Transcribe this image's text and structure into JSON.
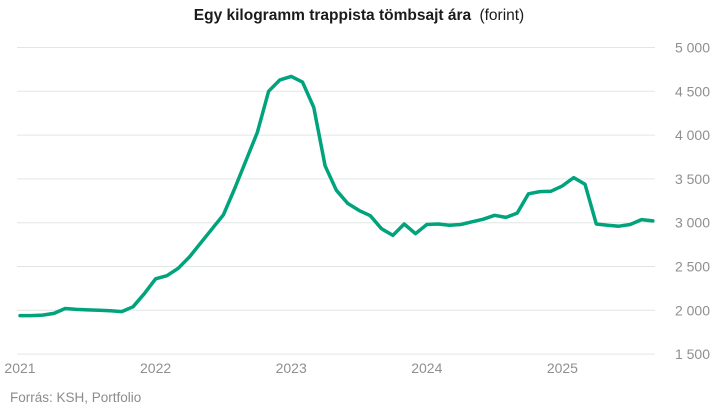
{
  "title": {
    "main": "Egy kilogramm trappista tömbsajt ára",
    "suffix": "(forint)"
  },
  "footer": {
    "source": "Forrás: KSH, Portfolio"
  },
  "colors": {
    "line": "#00a37c",
    "gridline": "#e1e6e3",
    "tick_text": "#8f8f8f",
    "title_text": "#1b1b1b",
    "background": "#ffffff"
  },
  "chart_data": {
    "type": "line",
    "title": "Egy kilogramm trappista tömbsajt ára (forint)",
    "unit": "forint",
    "frequency": "monthly",
    "x_start": "2021-01",
    "x_end": "2025-09",
    "grid": true,
    "legend": false,
    "y_axis_side": "right",
    "ylim": [
      1500,
      5000
    ],
    "yticks": [
      {
        "value": 5000,
        "label": "5 000"
      },
      {
        "value": 4500,
        "label": "4 500"
      },
      {
        "value": 4000,
        "label": "4 000"
      },
      {
        "value": 3500,
        "label": "3 500"
      },
      {
        "value": 3000,
        "label": "3 000"
      },
      {
        "value": 2500,
        "label": "2 500"
      },
      {
        "value": 2000,
        "label": "2 000"
      },
      {
        "value": 1500,
        "label": "1 500"
      }
    ],
    "xticks": [
      {
        "label": "2021",
        "month_index": 0
      },
      {
        "label": "2022",
        "month_index": 12
      },
      {
        "label": "2023",
        "month_index": 24
      },
      {
        "label": "2024",
        "month_index": 36
      },
      {
        "label": "2025",
        "month_index": 48
      }
    ],
    "series": [
      {
        "name": "Trappista tömbsajt ára (Ft/kg)",
        "color": "#00a37c",
        "values": [
          1940,
          1940,
          1945,
          1965,
          2020,
          2010,
          2005,
          2000,
          1995,
          1985,
          2040,
          2190,
          2360,
          2395,
          2480,
          2610,
          2770,
          2930,
          3090,
          3390,
          3710,
          4030,
          4500,
          4630,
          4670,
          4605,
          4315,
          3650,
          3370,
          3220,
          3140,
          3080,
          2930,
          2855,
          2985,
          2875,
          2980,
          2985,
          2970,
          2980,
          3010,
          3040,
          3085,
          3060,
          3110,
          3330,
          3355,
          3360,
          3420,
          3515,
          3440,
          2985,
          2970,
          2960,
          2980,
          3035,
          3020
        ]
      }
    ]
  }
}
